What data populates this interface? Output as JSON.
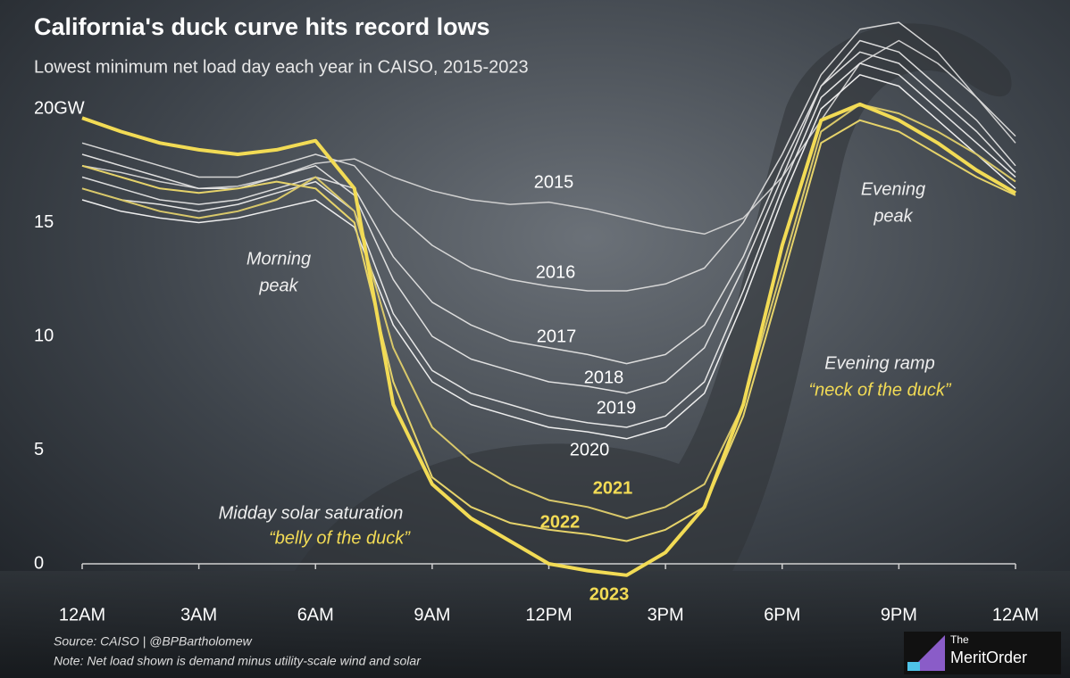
{
  "chart_data": {
    "type": "line",
    "title": "California's duck curve hits record lows",
    "subtitle": "Lowest minimum net load day each year in CAISO, 2015-2023",
    "x": [
      0,
      1,
      2,
      3,
      4,
      5,
      6,
      7,
      8,
      9,
      10,
      11,
      12,
      13,
      14,
      15,
      16,
      17,
      18,
      19,
      20,
      21,
      22,
      23,
      24
    ],
    "xlim": [
      0,
      24
    ],
    "xticks": [
      {
        "value": 0,
        "label": "12AM"
      },
      {
        "value": 3,
        "label": "3AM"
      },
      {
        "value": 6,
        "label": "6AM"
      },
      {
        "value": 9,
        "label": "9AM"
      },
      {
        "value": 12,
        "label": "12PM"
      },
      {
        "value": 15,
        "label": "3PM"
      },
      {
        "value": 18,
        "label": "6PM"
      },
      {
        "value": 21,
        "label": "9PM"
      },
      {
        "value": 24,
        "label": "12AM"
      }
    ],
    "ylim": [
      0,
      24
    ],
    "yticks": [
      0,
      5,
      10,
      15,
      {
        "value": 20,
        "label": "20GW"
      }
    ],
    "series": [
      {
        "name": "2015",
        "color": "#cfcfcf",
        "values": [
          17.5,
          17.2,
          16.8,
          16.5,
          16.6,
          17,
          17.6,
          17.8,
          17,
          16.4,
          16,
          15.8,
          15.9,
          15.6,
          15.2,
          14.8,
          14.5,
          15.2,
          17,
          19.5,
          22,
          23,
          22,
          20.5,
          18.5
        ]
      },
      {
        "name": "2016",
        "color": "#d6d6d6",
        "values": [
          18.5,
          18,
          17.5,
          17,
          17,
          17.5,
          18,
          17.5,
          15.5,
          14,
          13,
          12.5,
          12.2,
          12,
          12,
          12.3,
          13,
          15,
          18,
          21.5,
          23.5,
          23.8,
          22.5,
          20.5,
          18.8
        ]
      },
      {
        "name": "2017",
        "color": "#dcdcdc",
        "values": [
          17,
          16.5,
          16,
          15.8,
          16,
          16.5,
          17,
          16.5,
          13.5,
          11.5,
          10.5,
          9.8,
          9.5,
          9.2,
          8.8,
          9.2,
          10.5,
          13.5,
          17.5,
          21,
          23,
          22.5,
          21,
          19.5,
          17.5
        ]
      },
      {
        "name": "2018",
        "color": "#e0e0e0",
        "values": [
          18,
          17.5,
          17,
          16.5,
          16.5,
          17,
          17.5,
          16.2,
          12.5,
          10,
          9,
          8.5,
          8,
          7.8,
          7.5,
          8,
          9.5,
          13,
          17,
          21,
          22.5,
          22,
          20.5,
          19,
          17.2
        ]
      },
      {
        "name": "2019",
        "color": "#e6e6e6",
        "values": [
          16.5,
          16,
          15.8,
          15.5,
          15.8,
          16.3,
          16.8,
          15.5,
          11,
          8.5,
          7.5,
          7,
          6.5,
          6.2,
          6,
          6.5,
          8,
          12,
          16.5,
          20.5,
          22,
          21.5,
          20,
          18.5,
          17
        ]
      },
      {
        "name": "2020",
        "color": "#eeeeee",
        "values": [
          16,
          15.5,
          15.2,
          15,
          15.2,
          15.6,
          16,
          14.8,
          10.5,
          8,
          7,
          6.5,
          6,
          5.8,
          5.5,
          6,
          7.5,
          11.5,
          16,
          20,
          21.5,
          21,
          19.5,
          18,
          16.5
        ]
      },
      {
        "name": "2021",
        "color": "#d9c86a",
        "values": [
          16.5,
          16,
          15.5,
          15.2,
          15.5,
          16,
          17,
          15.5,
          9.5,
          6,
          4.5,
          3.5,
          2.8,
          2.5,
          2,
          2.5,
          3.5,
          7,
          13,
          19,
          20.2,
          19.8,
          19,
          18,
          16.8
        ]
      },
      {
        "name": "2022",
        "color": "#e6d36a",
        "values": [
          17.5,
          17,
          16.5,
          16.3,
          16.5,
          16.8,
          16.5,
          15,
          8,
          3.8,
          2.5,
          1.8,
          1.5,
          1.3,
          1,
          1.5,
          2.5,
          6.5,
          12.5,
          18.5,
          19.5,
          19,
          18,
          17,
          16.2
        ]
      },
      {
        "name": "2023",
        "color": "#f2db55",
        "values": [
          19.6,
          19,
          18.5,
          18.2,
          18,
          18.2,
          18.6,
          16.5,
          7,
          3.5,
          2,
          1,
          0,
          -0.3,
          -0.5,
          0.5,
          2.5,
          7,
          14,
          19.5,
          20.2,
          19.5,
          18.5,
          17.3,
          16.3
        ]
      }
    ],
    "annotations": [
      "Morning",
      "peak",
      "Evening",
      "peak",
      "Evening ramp",
      "“neck of the duck”",
      "Midday solar saturation",
      "“belly of the duck”"
    ],
    "source": "Source: CAISO | @BPBartholomew",
    "note": "Note: Net load shown is demand minus utility-scale wind and solar",
    "logo": [
      "The",
      "MeritOrder"
    ]
  }
}
